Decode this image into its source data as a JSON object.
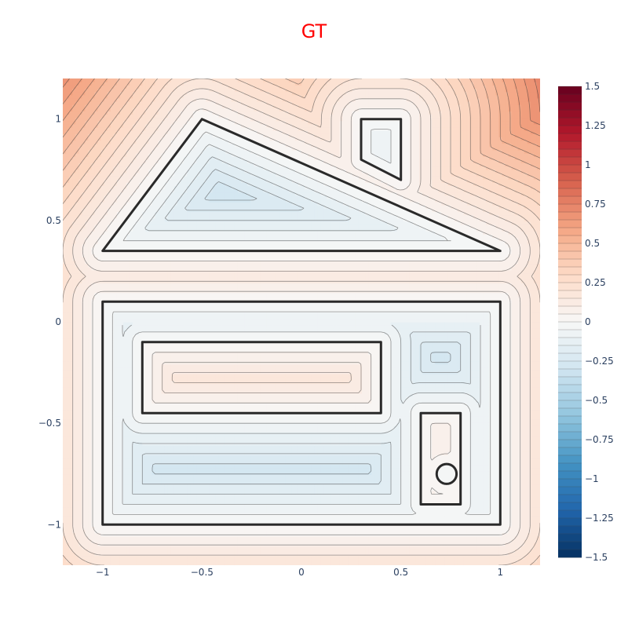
{
  "chart_data": {
    "type": "contour",
    "title": "GT",
    "title_color": "#ff0000",
    "xlabel": "",
    "ylabel": "",
    "xlim": [
      -1.2,
      1.2
    ],
    "ylim": [
      -1.2,
      1.2
    ],
    "x_ticks": [
      -1,
      -0.5,
      0,
      0.5,
      1
    ],
    "x_tick_labels": [
      "−1",
      "−0.5",
      "0",
      "0.5",
      "1"
    ],
    "y_ticks": [
      1,
      0.5,
      0,
      -0.5,
      -1
    ],
    "y_tick_labels": [
      "1",
      "0.5",
      "0",
      "−0.5",
      "−1"
    ],
    "colorscale": "RdBu_r",
    "colorbar": {
      "min": -1.5,
      "max": 1.5,
      "ticks": [
        1.5,
        1.25,
        1,
        0.75,
        0.5,
        0.25,
        0,
        -0.25,
        -0.5,
        -0.75,
        -1,
        -1.25,
        -1.5
      ],
      "tick_labels": [
        "1.5",
        "1.25",
        "1",
        "0.75",
        "0.5",
        "0.25",
        "0",
        "−0.25",
        "−0.5",
        "−0.75",
        "−1",
        "−1.25",
        "−1.5"
      ]
    },
    "contour_spacing": 0.05,
    "zero_level_shapes": [
      {
        "kind": "triangle",
        "points": [
          [
            -0.5,
            1.0
          ],
          [
            -1.0,
            0.35
          ],
          [
            1.0,
            0.35
          ]
        ]
      },
      {
        "kind": "quad",
        "points": [
          [
            0.3,
            1.0
          ],
          [
            0.5,
            1.0
          ],
          [
            0.5,
            0.7
          ],
          [
            0.3,
            0.8
          ]
        ]
      },
      {
        "kind": "rect",
        "x": [
          -1.0,
          1.0
        ],
        "y": [
          -1.0,
          0.1
        ]
      },
      {
        "kind": "rect",
        "x": [
          -0.8,
          0.4
        ],
        "y": [
          -0.45,
          -0.1
        ]
      },
      {
        "kind": "rect",
        "x": [
          0.6,
          0.8
        ],
        "y": [
          -0.9,
          -0.45
        ]
      },
      {
        "kind": "circle",
        "center": [
          0.73,
          -0.75
        ],
        "radius": 0.05
      }
    ]
  }
}
